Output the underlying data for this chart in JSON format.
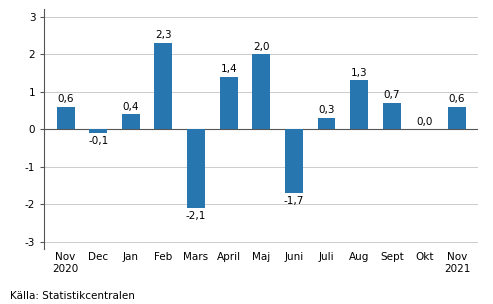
{
  "categories": [
    "Nov\n2020",
    "Dec",
    "Jan",
    "Feb",
    "Mars",
    "April",
    "Maj",
    "Juni",
    "Juli",
    "Aug",
    "Sept",
    "Okt",
    "Nov\n2021"
  ],
  "values": [
    0.6,
    -0.1,
    0.4,
    2.3,
    -2.1,
    1.4,
    2.0,
    -1.7,
    0.3,
    1.3,
    0.7,
    0.0,
    0.6
  ],
  "bar_color": "#2776b0",
  "ylim": [
    -3.2,
    3.2
  ],
  "yticks": [
    -3,
    -2,
    -1,
    0,
    1,
    2,
    3
  ],
  "source_text": "Källa: Statistikcentralen",
  "label_fontsize": 7.5,
  "tick_fontsize": 7.5,
  "source_fontsize": 7.5,
  "bar_width": 0.55
}
